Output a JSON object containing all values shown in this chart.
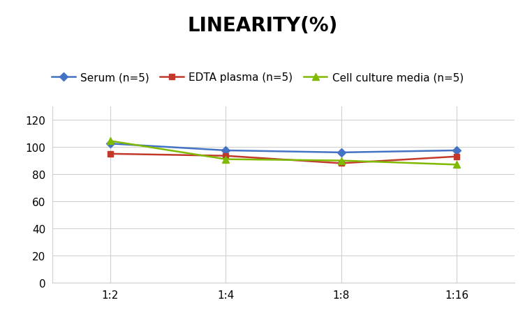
{
  "title": "LINEARITY(%)",
  "title_fontsize": 20,
  "title_fontweight": "bold",
  "x_labels": [
    "1:2",
    "1:4",
    "1:8",
    "1:16"
  ],
  "x_positions": [
    0,
    1,
    2,
    3
  ],
  "series": [
    {
      "label": "Serum (n=5)",
      "values": [
        102.5,
        97.5,
        96.0,
        97.5
      ],
      "color": "#4472C4",
      "marker": "D",
      "markersize": 6,
      "linewidth": 1.8
    },
    {
      "label": "EDTA plasma (n=5)",
      "values": [
        95.0,
        93.5,
        88.0,
        93.0
      ],
      "color": "#C0392B",
      "marker": "s",
      "markersize": 6,
      "linewidth": 1.8
    },
    {
      "label": "Cell culture media (n=5)",
      "values": [
        104.5,
        91.0,
        90.0,
        87.0
      ],
      "color": "#7FBA00",
      "marker": "^",
      "markersize": 7,
      "linewidth": 1.8
    }
  ],
  "ylim": [
    0,
    130
  ],
  "yticks": [
    0,
    20,
    40,
    60,
    80,
    100,
    120
  ],
  "background_color": "#ffffff",
  "grid_color": "#d0d0d0",
  "legend_fontsize": 11,
  "tick_fontsize": 11,
  "fig_width": 7.52,
  "fig_height": 4.52
}
